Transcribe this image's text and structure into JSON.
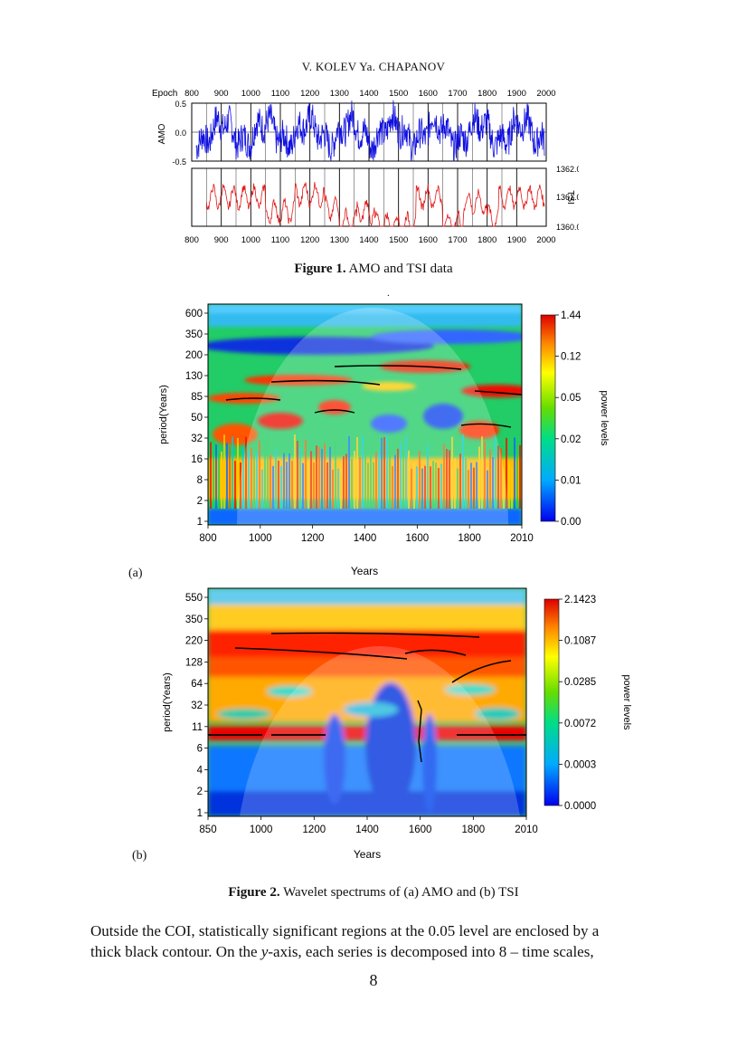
{
  "header": "V. KOLEV  Ya. CHAPANOV",
  "figure1": {
    "caption_label": "Figure 1.",
    "caption_text": " AMO and TSI data",
    "epoch_label": "Epoch",
    "x_ticks": [
      "800",
      "900",
      "1000",
      "1100",
      "1200",
      "1300",
      "1400",
      "1500",
      "1600",
      "1700",
      "1800",
      "1900",
      "2000"
    ],
    "amo_label": "AMO",
    "amo_ticks": [
      "0.5",
      "0.0",
      "-0.5"
    ],
    "tsi_label": "TSI",
    "tsi_ticks": [
      "1362.0",
      "1361.0",
      "1360.0"
    ],
    "colors": {
      "amo": "#1010e0",
      "tsi": "#e01818"
    }
  },
  "figure2a": {
    "y_ticks": [
      "600",
      "350",
      "200",
      "130",
      "85",
      "50",
      "32",
      "16",
      "8",
      "2",
      "1"
    ],
    "x_ticks": [
      "800",
      "1000",
      "1200",
      "1400",
      "1600",
      "1800",
      "2010"
    ],
    "xlabel": "Years",
    "ylabel": "period(Years)",
    "colorbar_ticks": [
      "1.44",
      "0.12",
      "0.05",
      "0.02",
      "0.01",
      "0.00"
    ],
    "colorbar_label": "power levels",
    "panel_label": "(a)",
    "dot": "."
  },
  "figure2b": {
    "y_ticks": [
      "550",
      "350",
      "220",
      "128",
      "64",
      "32",
      "11",
      "6",
      "4",
      "2",
      "1"
    ],
    "x_ticks": [
      "850",
      "1000",
      "1200",
      "1400",
      "1600",
      "1800",
      "2010"
    ],
    "xlabel": "Years",
    "ylabel": "period(Years)",
    "colorbar_ticks": [
      "2.1423",
      "0.1087",
      "0.0285",
      "0.0072",
      "0.0003",
      "0.0000"
    ],
    "colorbar_label": "power levels",
    "panel_label": "(b)"
  },
  "figure2_caption": {
    "label": "Figure 2.",
    "text": " Wavelet spectrums of (a) AMO and (b) TSI"
  },
  "paragraph": {
    "line1": "Outside the COI, statistically significant regions at the 0.05 level are enclosed by a",
    "line2_a": "thick black contour. On the ",
    "line2_italic": "y",
    "line2_b": "-axis, each series is decomposed into 8 – time scales,"
  },
  "page_number": "8"
}
